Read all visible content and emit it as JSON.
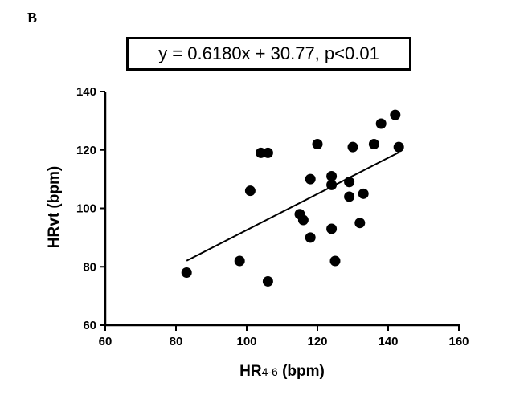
{
  "panel_label": "B",
  "chart_data": {
    "type": "scatter",
    "title": "y = 0.6180x + 30.77, p<0.01",
    "xlabel": {
      "main": "HR",
      "sub": "4-6",
      "unit": " (bpm)"
    },
    "ylabel": "HRvt (bpm)",
    "xlim": [
      60,
      160
    ],
    "ylim": [
      60,
      140
    ],
    "xticks": [
      60,
      80,
      100,
      120,
      140,
      160
    ],
    "yticks": [
      60,
      80,
      100,
      120,
      140
    ],
    "grid": false,
    "regression": {
      "slope": 0.618,
      "intercept": 30.77,
      "x_range": [
        83,
        143
      ]
    },
    "points": [
      {
        "x": 83,
        "y": 78
      },
      {
        "x": 98,
        "y": 82
      },
      {
        "x": 101,
        "y": 106
      },
      {
        "x": 104,
        "y": 119
      },
      {
        "x": 106,
        "y": 119
      },
      {
        "x": 106,
        "y": 75
      },
      {
        "x": 115,
        "y": 98
      },
      {
        "x": 116,
        "y": 96
      },
      {
        "x": 118,
        "y": 110
      },
      {
        "x": 118,
        "y": 90
      },
      {
        "x": 120,
        "y": 122
      },
      {
        "x": 124,
        "y": 111
      },
      {
        "x": 124,
        "y": 108
      },
      {
        "x": 124,
        "y": 93
      },
      {
        "x": 125,
        "y": 82
      },
      {
        "x": 129,
        "y": 109
      },
      {
        "x": 129,
        "y": 104
      },
      {
        "x": 130,
        "y": 121
      },
      {
        "x": 132,
        "y": 95
      },
      {
        "x": 133,
        "y": 105
      },
      {
        "x": 136,
        "y": 122
      },
      {
        "x": 138,
        "y": 129
      },
      {
        "x": 142,
        "y": 132
      },
      {
        "x": 143,
        "y": 121
      }
    ]
  }
}
